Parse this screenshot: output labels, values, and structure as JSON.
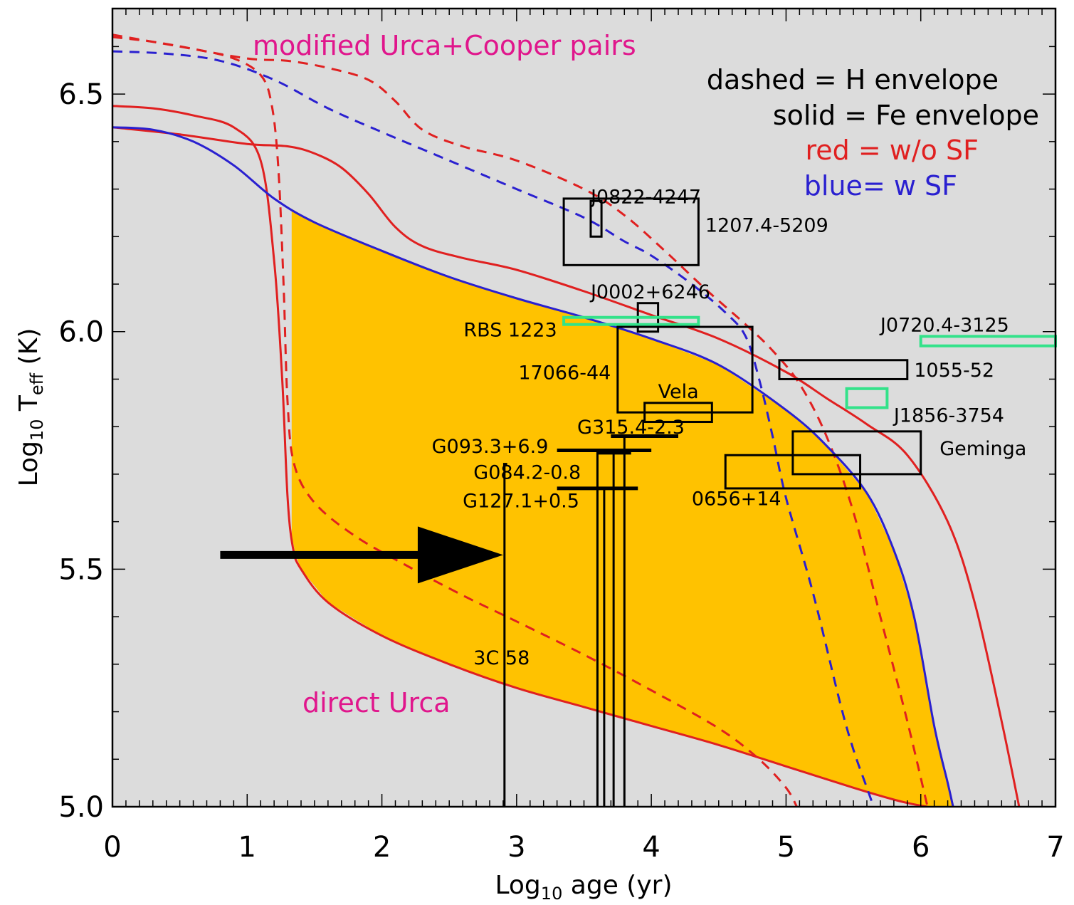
{
  "chart_data": {
    "type": "line",
    "xlabel": "Log",
    "xlabel_sub": "10",
    "xlabel_rest": " age (yr)",
    "ylabel": "Log",
    "ylabel_sub": "10",
    "ylabel_mid": " T",
    "ylabel_sub2": "eff",
    "ylabel_rest": " (K)",
    "xlim": [
      0,
      7
    ],
    "ylim": [
      5.0,
      6.68
    ],
    "x_ticks": [
      0,
      1,
      2,
      3,
      4,
      5,
      6,
      7
    ],
    "y_ticks": [
      5.0,
      5.5,
      6.0,
      6.5
    ],
    "x_tick_labels": [
      "0",
      "1",
      "2",
      "3",
      "4",
      "5",
      "6",
      "7"
    ],
    "y_tick_labels": [
      "5.0",
      "5.5",
      "6.0",
      "6.5"
    ],
    "grid": false,
    "background": "#dcdcdc",
    "legend": {
      "line1": "dashed = H envelope",
      "line2": "solid = Fe envelope",
      "line3": "red = w/o SF",
      "line4": "blue= w SF"
    },
    "annotations": {
      "modified_urca": "modified Urca+Cooper pairs",
      "direct_urca": "direct Urca"
    },
    "colors": {
      "red": "#e02020",
      "blue": "#2a20d0",
      "fill": "#ffc200",
      "green": "#33e28a",
      "black": "#000000",
      "magenta": "#e0168c"
    },
    "series": [
      {
        "style": "red-solid",
        "x": [
          0,
          0.3,
          0.6,
          0.9,
          1.1,
          1.2,
          1.26,
          1.3,
          1.34,
          1.4,
          1.6,
          2.0,
          2.5,
          3.0,
          3.5,
          4.0,
          4.5,
          5.0,
          5.5,
          5.8,
          5.95,
          6.05
        ],
        "y": [
          6.475,
          6.47,
          6.455,
          6.43,
          6.36,
          6.15,
          5.9,
          5.65,
          5.545,
          5.5,
          5.43,
          5.36,
          5.3,
          5.25,
          5.21,
          5.17,
          5.13,
          5.085,
          5.04,
          5.015,
          5.005,
          5.0
        ]
      },
      {
        "style": "red-solid",
        "x": [
          0,
          0.5,
          1.0,
          1.3,
          1.5,
          1.7,
          1.9,
          2.1,
          2.3,
          2.6,
          3.0,
          3.5,
          4.0,
          4.5,
          5.0,
          5.3,
          5.6,
          5.9,
          6.2,
          6.4,
          6.6,
          6.73
        ],
        "y": [
          6.43,
          6.415,
          6.395,
          6.39,
          6.375,
          6.345,
          6.29,
          6.22,
          6.18,
          6.155,
          6.13,
          6.085,
          6.035,
          5.985,
          5.915,
          5.86,
          5.805,
          5.74,
          5.6,
          5.43,
          5.18,
          5.0
        ]
      },
      {
        "style": "red-dashed",
        "x": [
          0,
          0.3,
          0.6,
          0.9,
          1.1,
          1.18,
          1.23,
          1.27,
          1.3,
          1.35,
          1.5,
          1.8,
          2.2,
          2.6,
          3.0,
          3.5,
          4.0,
          4.5,
          4.8,
          5.0,
          5.08
        ],
        "y": [
          6.62,
          6.61,
          6.595,
          6.575,
          6.54,
          6.48,
          6.35,
          6.1,
          5.85,
          5.72,
          5.64,
          5.57,
          5.505,
          5.445,
          5.39,
          5.32,
          5.245,
          5.165,
          5.1,
          5.04,
          5.0
        ]
      },
      {
        "style": "red-dashed",
        "x": [
          0,
          0.5,
          1.0,
          1.3,
          1.6,
          1.9,
          2.1,
          2.3,
          2.6,
          3.0,
          3.5,
          3.8,
          4.1,
          4.4,
          4.7,
          4.9,
          5.1,
          5.3,
          5.5,
          5.7,
          5.9,
          6.05
        ],
        "y": [
          6.625,
          6.6,
          6.575,
          6.57,
          6.555,
          6.53,
          6.485,
          6.425,
          6.39,
          6.36,
          6.3,
          6.245,
          6.17,
          6.09,
          6.015,
          5.96,
          5.89,
          5.78,
          5.62,
          5.4,
          5.18,
          5.0
        ]
      },
      {
        "style": "blue-solid",
        "x": [
          0,
          0.3,
          0.6,
          0.9,
          1.2,
          1.5,
          2.0,
          2.5,
          3.0,
          3.5,
          4.0,
          4.5,
          5.0,
          5.3,
          5.6,
          5.8,
          5.95,
          6.1,
          6.2,
          6.24
        ],
        "y": [
          6.43,
          6.425,
          6.4,
          6.35,
          6.28,
          6.23,
          6.17,
          6.115,
          6.07,
          6.03,
          5.985,
          5.93,
          5.835,
          5.76,
          5.66,
          5.54,
          5.4,
          5.17,
          5.05,
          5.0
        ]
      },
      {
        "style": "blue-dashed",
        "x": [
          0,
          0.4,
          0.8,
          1.2,
          1.6,
          2.0,
          2.5,
          3.0,
          3.5,
          3.8,
          4.0,
          4.3,
          4.55,
          4.7,
          4.8,
          4.9,
          5.0,
          5.2,
          5.4,
          5.5,
          5.6,
          5.65
        ],
        "y": [
          6.59,
          6.585,
          6.57,
          6.53,
          6.47,
          6.42,
          6.36,
          6.3,
          6.24,
          6.19,
          6.16,
          6.1,
          6.04,
          5.99,
          5.9,
          5.78,
          5.65,
          5.45,
          5.22,
          5.12,
          5.04,
          5.0
        ]
      }
    ],
    "shaded_region": {
      "upper_boundary": "blue-solid",
      "lower_boundary": "red-solid (direct Urca)"
    },
    "objects": [
      {
        "name": "J0822-4247",
        "type": "box",
        "x": [
          3.55,
          3.63
        ],
        "y": [
          6.2,
          6.275
        ],
        "color": "black"
      },
      {
        "name": "1207.4-5209",
        "type": "box",
        "x": [
          3.35,
          4.35
        ],
        "y": [
          6.14,
          6.28
        ],
        "color": "black"
      },
      {
        "name": "J0002+6246",
        "type": "box",
        "x": [
          3.9,
          4.05
        ],
        "y": [
          6.0,
          6.06
        ],
        "color": "black"
      },
      {
        "name": "RBS 1223",
        "type": "box",
        "x": [
          3.35,
          4.35
        ],
        "y": [
          6.015,
          6.03
        ],
        "color": "green"
      },
      {
        "name": "17066-44",
        "type": "box",
        "x": [
          3.75,
          4.75
        ],
        "y": [
          5.83,
          6.01
        ],
        "color": "black"
      },
      {
        "name": "Vela",
        "type": "box",
        "x": [
          3.95,
          4.45
        ],
        "y": [
          5.81,
          5.85
        ],
        "color": "black"
      },
      {
        "name": "J0720.4-3125",
        "type": "box",
        "x": [
          6.0,
          7.0
        ],
        "y": [
          5.97,
          5.99
        ],
        "color": "green"
      },
      {
        "name": "1055-52",
        "type": "box",
        "x": [
          4.95,
          5.9
        ],
        "y": [
          5.9,
          5.94
        ],
        "color": "black"
      },
      {
        "name": "J1856-3754",
        "type": "box",
        "x": [
          5.45,
          5.75
        ],
        "y": [
          5.84,
          5.88
        ],
        "color": "green"
      },
      {
        "name": "Geminga",
        "type": "box",
        "x": [
          5.05,
          6.0
        ],
        "y": [
          5.7,
          5.79
        ],
        "color": "black"
      },
      {
        "name": "0656+14",
        "type": "box",
        "x": [
          4.55,
          5.55
        ],
        "y": [
          5.67,
          5.74
        ],
        "color": "black"
      },
      {
        "name": "G315.4-2.3",
        "type": "bar",
        "x": [
          3.7,
          4.2
        ],
        "y": 5.78,
        "x_line": 3.8
      },
      {
        "name": "G093.3+6.9",
        "type": "bar",
        "x": [
          3.3,
          4.0
        ],
        "y": 5.75,
        "x_line": 3.6
      },
      {
        "name": "G084.2-0.8",
        "type": "bar",
        "x": [
          3.6,
          3.85
        ],
        "y": 5.745,
        "x_line": 3.72
      },
      {
        "name": "G127.1+0.5",
        "type": "bar",
        "x": [
          3.3,
          3.9
        ],
        "y": 5.67,
        "x_line": 3.65
      },
      {
        "name": "3C 58",
        "type": "bar",
        "x": [
          2.9,
          2.93
        ],
        "y": 5.72,
        "x_line": 2.91
      }
    ],
    "arrow": {
      "x": [
        0.8,
        2.9
      ],
      "y": 5.53
    }
  }
}
